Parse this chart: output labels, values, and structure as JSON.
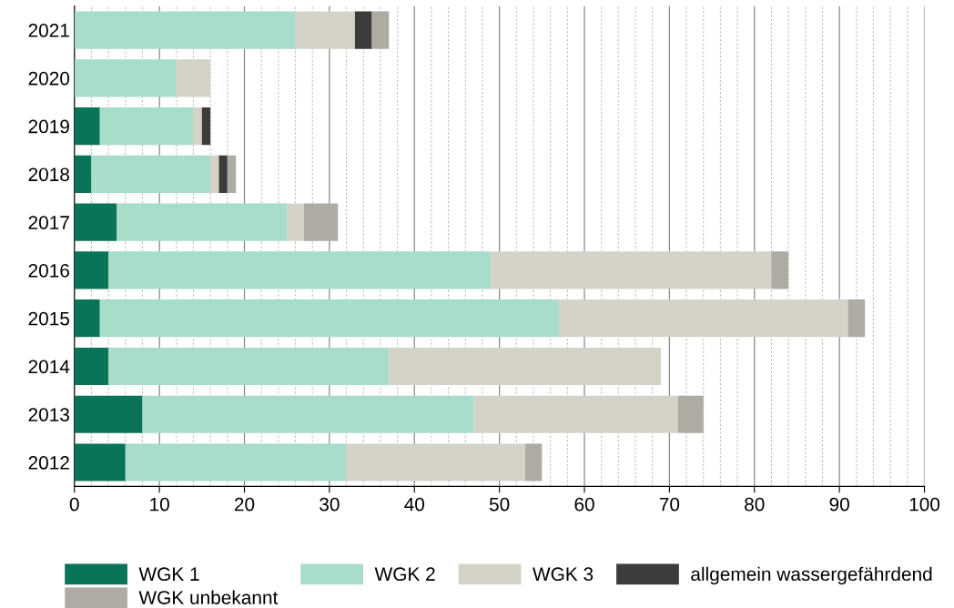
{
  "chart_data": {
    "type": "bar",
    "orientation": "horizontal",
    "stacked": true,
    "categories": [
      "2021",
      "2020",
      "2019",
      "2018",
      "2017",
      "2016",
      "2015",
      "2014",
      "2013",
      "2012"
    ],
    "series": [
      {
        "name": "WGK 1",
        "color": "#0a7458",
        "values": [
          0,
          0,
          3,
          2,
          5,
          4,
          3,
          4,
          8,
          6
        ]
      },
      {
        "name": "WGK 2",
        "color": "#a8dccb",
        "values": [
          26,
          12,
          11,
          14,
          20,
          45,
          54,
          33,
          39,
          26
        ]
      },
      {
        "name": "WGK 3",
        "color": "#d5d3c8",
        "values": [
          7,
          4,
          1,
          1,
          2,
          33,
          34,
          32,
          24,
          21
        ]
      },
      {
        "name": "allgemein wassergefährdend",
        "color": "#3c3d3a",
        "values": [
          2,
          0,
          1,
          1,
          0,
          0,
          0,
          0,
          0,
          0
        ]
      },
      {
        "name": "WGK unbekannt",
        "color": "#aeaba3",
        "values": [
          2,
          0,
          0,
          1,
          4,
          2,
          2,
          0,
          3,
          2
        ]
      }
    ],
    "xlim": [
      0,
      100
    ],
    "xticks": [
      0,
      10,
      20,
      30,
      40,
      50,
      60,
      70,
      80,
      90,
      100
    ],
    "grid": "x",
    "legend": "bottom"
  }
}
